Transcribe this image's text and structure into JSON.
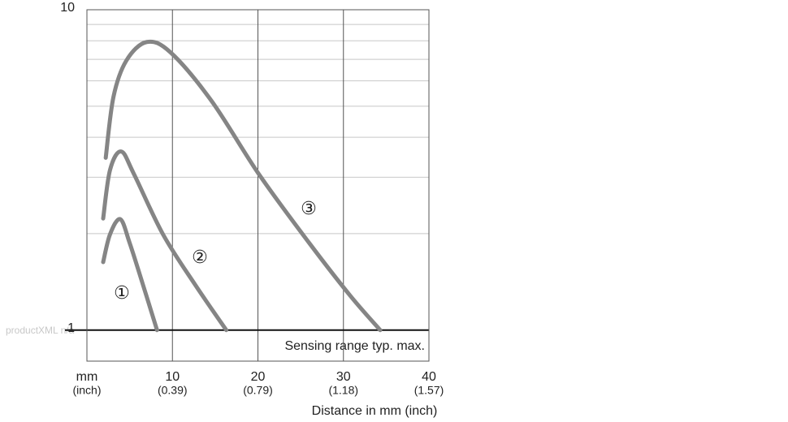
{
  "chart_data": {
    "type": "line",
    "xlabel": "Distance in mm (inch)",
    "x_unit_labels": [
      "mm",
      "(inch)"
    ],
    "xlim": [
      0,
      40
    ],
    "xticks": [
      10,
      20,
      30,
      40
    ],
    "x_inch_labels": [
      "(0.39)",
      "(0.79)",
      "(1.18)",
      "(1.57)"
    ],
    "ylim": [
      0.8,
      10
    ],
    "yticks": [
      1,
      10
    ],
    "yminor": [
      2,
      3,
      4,
      5,
      6,
      7,
      8,
      9
    ],
    "log_y": true,
    "grid": true,
    "annotation": "Sensing range typ. max.",
    "watermark": "productXML n/a",
    "series": [
      {
        "name": "①",
        "color": "#858585",
        "x": [
          1.9,
          2.7,
          3.9,
          5.0,
          6.5,
          8.2
        ],
        "values": [
          1.63,
          1.99,
          2.22,
          1.87,
          1.4,
          1.0
        ]
      },
      {
        "name": "②",
        "color": "#858585",
        "x": [
          1.9,
          2.7,
          4.0,
          5.5,
          8.9,
          12.7,
          16.3
        ],
        "values": [
          2.23,
          3.16,
          3.61,
          3.07,
          1.99,
          1.38,
          1.0
        ]
      },
      {
        "name": "③",
        "color": "#858585",
        "x": [
          2.2,
          3.1,
          4.6,
          7.0,
          9.8,
          14.6,
          20.1,
          26.0,
          30.8,
          34.3
        ],
        "values": [
          3.45,
          5.34,
          6.93,
          7.93,
          7.35,
          5.18,
          3.07,
          1.87,
          1.28,
          1.0
        ]
      }
    ]
  }
}
